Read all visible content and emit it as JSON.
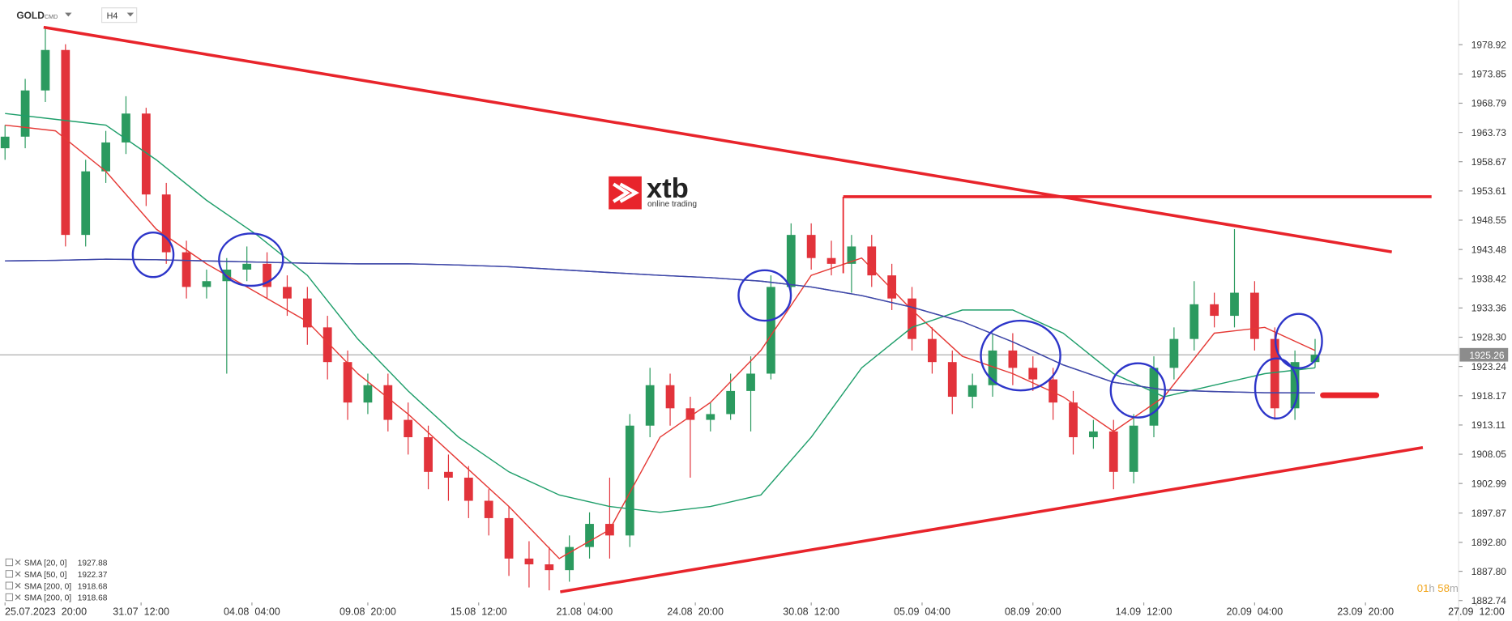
{
  "chart_data": {
    "type": "candlestick",
    "symbol": "GOLD",
    "market": "CMD",
    "timeframe": "H4",
    "logo": {
      "brand": "xtb",
      "tagline": "online trading"
    },
    "countdown": {
      "hours": "01",
      "h": "h",
      "minutes": "58",
      "m": "m"
    },
    "current_price": 1925.26,
    "xlim": [
      -1,
      288.5
    ],
    "xticks": [
      {
        "value": 0,
        "label": "25.07.2023  20:00"
      },
      {
        "value": 27,
        "label": "31.07  12:00"
      },
      {
        "value": 49,
        "label": "04.08  04:00"
      },
      {
        "value": 72,
        "label": "09.08  20:00"
      },
      {
        "value": 94,
        "label": "15.08  12:00"
      },
      {
        "value": 115,
        "label": "21.08  04:00"
      },
      {
        "value": 137,
        "label": "24.08  20:00"
      },
      {
        "value": 160,
        "label": "30.08  12:00"
      },
      {
        "value": 182,
        "label": "05.09  04:00"
      },
      {
        "value": 204,
        "label": "08.09  20:00"
      },
      {
        "value": 226,
        "label": "14.09  12:00"
      },
      {
        "value": 248,
        "label": "20.09  04:00"
      },
      {
        "value": 270,
        "label": "23.09  20:00"
      },
      {
        "value": 292,
        "label": "27.09  12:00"
      }
    ],
    "ylim": [
      1882.4,
      1986.63
    ],
    "yticks": [
      1978.92,
      1973.85,
      1968.79,
      1963.73,
      1958.67,
      1953.61,
      1948.55,
      1943.48,
      1938.42,
      1933.36,
      {
        "value": 1928.3,
        "label": "1928.30"
      },
      1923.24,
      1918.17,
      1913.11,
      1908.05,
      1902.99,
      1897.87,
      {
        "value": 1892.8,
        "label": "1892.80"
      },
      {
        "value": 1887.8,
        "label": "1887.80"
      },
      1882.74
    ],
    "candles": {
      "x": [
        0,
        4,
        8,
        12,
        16,
        20,
        24,
        28,
        32,
        36,
        40,
        44,
        48,
        52,
        56,
        60,
        64,
        68,
        72,
        76,
        80,
        84,
        88,
        92,
        96,
        100,
        104,
        108,
        112,
        116,
        120,
        124,
        128,
        132,
        136,
        140,
        144,
        148,
        152,
        156,
        160,
        164,
        168,
        172,
        176,
        180,
        184,
        188,
        192,
        196,
        200,
        204,
        208,
        212,
        216,
        220,
        224,
        228,
        232,
        236,
        240,
        244,
        248,
        252,
        256,
        260
      ],
      "open": [
        1961,
        1963,
        1971,
        1978,
        1946,
        1957,
        1962,
        1967,
        1953,
        1943,
        1937,
        1938,
        1940,
        1941,
        1937,
        1935,
        1930,
        1924,
        1917,
        1920,
        1914,
        1911,
        1905,
        1904,
        1900,
        1897,
        1890,
        1889,
        1888,
        1892,
        1896,
        1894,
        1913,
        1920,
        1916,
        1914,
        1915,
        1919,
        1922,
        1937,
        1946,
        1942,
        1941,
        1944,
        1939,
        1935,
        1928,
        1924,
        1918,
        1920,
        1926,
        1923,
        1921,
        1917,
        1911,
        1912,
        1905,
        1913,
        1923,
        1928,
        1934,
        1932,
        1936,
        1928,
        1916,
        1924
      ],
      "high": [
        1965,
        1973,
        1982,
        1979,
        1959,
        1964,
        1970,
        1968,
        1955,
        1945,
        1940,
        1942,
        1944,
        1943,
        1939,
        1937,
        1932,
        1926,
        1922,
        1922,
        1917,
        1913,
        1908,
        1906,
        1902,
        1899,
        1893,
        1892,
        1894,
        1898,
        1904,
        1915,
        1923,
        1922,
        1918,
        1917,
        1922,
        1925,
        1939,
        1948,
        1948,
        1945,
        1946,
        1946,
        1941,
        1937,
        1930,
        1926,
        1922,
        1929,
        1929,
        1925,
        1923,
        1919,
        1914,
        1914,
        1915,
        1925,
        1930,
        1938,
        1936,
        1947,
        1938,
        1930,
        1926,
        1928
      ],
      "low": [
        1959,
        1961,
        1969,
        1944,
        1944,
        1955,
        1960,
        1951,
        1941,
        1935,
        1935,
        1922,
        1938,
        1935,
        1932,
        1927,
        1921,
        1914,
        1915,
        1912,
        1908,
        1902,
        1900,
        1897,
        1894,
        1887,
        1885,
        1884.5,
        1886,
        1890,
        1890,
        1892,
        1911,
        1913,
        1904,
        1912,
        1914,
        1912,
        1921,
        1935,
        1940,
        1939,
        1936,
        1937,
        1933,
        1926,
        1922,
        1915,
        1916,
        1918,
        1920,
        1919,
        1914,
        1908,
        1909,
        1902,
        1903,
        1911,
        1921,
        1926,
        1930,
        1930,
        1926,
        1914,
        1914,
        1923
      ],
      "close": [
        1963,
        1971,
        1978,
        1946,
        1957,
        1962,
        1967,
        1953,
        1943,
        1937,
        1938,
        1940,
        1941,
        1937,
        1935,
        1930,
        1924,
        1917,
        1920,
        1914,
        1911,
        1905,
        1904,
        1900,
        1897,
        1890,
        1889,
        1888,
        1892,
        1896,
        1894,
        1913,
        1920,
        1916,
        1914,
        1915,
        1919,
        1922,
        1937,
        1946,
        1942,
        1941,
        1944,
        1939,
        1935,
        1928,
        1924,
        1918,
        1920,
        1926,
        1923,
        1921,
        1917,
        1911,
        1912,
        1905,
        1913,
        1923,
        1928,
        1934,
        1932,
        1936,
        1928,
        1916,
        1924,
        1925.26
      ]
    },
    "series": [
      {
        "name": "SMA [20, 0]",
        "value_label": "1927.88",
        "color": "#e53935",
        "x": [
          0,
          10,
          20,
          30,
          40,
          50,
          60,
          70,
          80,
          90,
          100,
          110,
          120,
          130,
          140,
          150,
          160,
          170,
          180,
          190,
          200,
          210,
          220,
          230,
          240,
          250,
          260
        ],
        "values": [
          1965,
          1964,
          1957,
          1947,
          1941,
          1936,
          1931,
          1922,
          1915,
          1907,
          1899,
          1890,
          1895,
          1911,
          1917,
          1926,
          1939,
          1942,
          1933,
          1925,
          1922,
          1918,
          1912,
          1918,
          1929,
          1930,
          1926
        ]
      },
      {
        "name": "SMA [50, 0]",
        "value_label": "1922.37",
        "color": "#1e9e6a",
        "x": [
          0,
          10,
          20,
          30,
          40,
          50,
          60,
          70,
          80,
          90,
          100,
          110,
          120,
          130,
          140,
          150,
          160,
          170,
          180,
          190,
          200,
          210,
          220,
          230,
          240,
          250,
          260
        ],
        "values": [
          1967,
          1966,
          1965,
          1959,
          1952,
          1946,
          1939,
          1928,
          1919,
          1911,
          1905,
          1901,
          1899,
          1898,
          1899,
          1901,
          1911,
          1923,
          1930,
          1933,
          1933,
          1929,
          1922,
          1918,
          1920,
          1922,
          1923
        ]
      },
      {
        "name": "SMA [200, 0]",
        "value_label": "1918.68",
        "color": "#3f48a8",
        "x": [
          0,
          10,
          20,
          30,
          40,
          50,
          60,
          70,
          80,
          90,
          100,
          110,
          120,
          130,
          140,
          150,
          160,
          170,
          180,
          190,
          200,
          210,
          220,
          230,
          240,
          250,
          260
        ],
        "values": [
          1941.5,
          1941.6,
          1941.8,
          1941.7,
          1941.5,
          1941.3,
          1941.1,
          1941,
          1941,
          1940.8,
          1940.5,
          1940,
          1939.5,
          1939,
          1938.6,
          1938,
          1937,
          1935.5,
          1933.5,
          1931,
          1927.5,
          1923.5,
          1920.5,
          1919.2,
          1918.9,
          1918.7,
          1918.68
        ]
      },
      {
        "name": "SMA [200, 0]",
        "value_label": "1918.68",
        "color": "#3f48a8",
        "x": [
          0,
          10,
          20,
          30,
          40,
          50,
          60,
          70,
          80,
          90,
          100,
          110,
          120,
          130,
          140,
          150,
          160,
          170,
          180,
          190,
          200,
          210,
          220,
          230,
          240,
          250,
          260
        ],
        "values": [
          1941.5,
          1941.6,
          1941.8,
          1941.7,
          1941.5,
          1941.3,
          1941.1,
          1941,
          1941,
          1940.8,
          1940.5,
          1940,
          1939.5,
          1939,
          1938.6,
          1938,
          1937,
          1935.5,
          1933.5,
          1931,
          1927.5,
          1923.5,
          1920.5,
          1919.2,
          1918.9,
          1918.7,
          1918.68
        ]
      }
    ],
    "up_color": "#2b9a5f",
    "down_color": "#e2333b"
  }
}
